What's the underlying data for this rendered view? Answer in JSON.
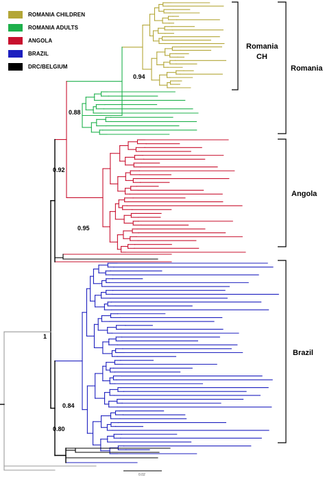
{
  "legend": {
    "items": [
      {
        "label": "ROMANIA CHILDREN",
        "color": "#b3a637"
      },
      {
        "label": "ROMANIA ADULTS",
        "color": "#1db04b"
      },
      {
        "label": "ANGOLA",
        "color": "#c8102e"
      },
      {
        "label": "BRAZIL",
        "color": "#1c1fbf"
      },
      {
        "label": "DRC/BELGIUM",
        "color": "#000000"
      }
    ]
  },
  "clades": {
    "romania_ch_line1": "Romania",
    "romania_ch_line2": "CH",
    "romania": "Romania",
    "angola": "Angola",
    "brazil": "Brazil"
  },
  "support_values": {
    "rom_ch": "0.94",
    "romania": "0.88",
    "angola_romania": "0.92",
    "angola": "0.95",
    "root": "1",
    "brazil_sub": "0.84",
    "brazil": "0.80"
  },
  "scale_bar": {
    "label": "0.02"
  },
  "colors": {
    "romania_children": "#b3a637",
    "romania_adults": "#1db04b",
    "angola": "#c8102e",
    "brazil": "#1c1fbf",
    "drc_belgium": "#000000",
    "outgroup": "#9a9a9a"
  }
}
